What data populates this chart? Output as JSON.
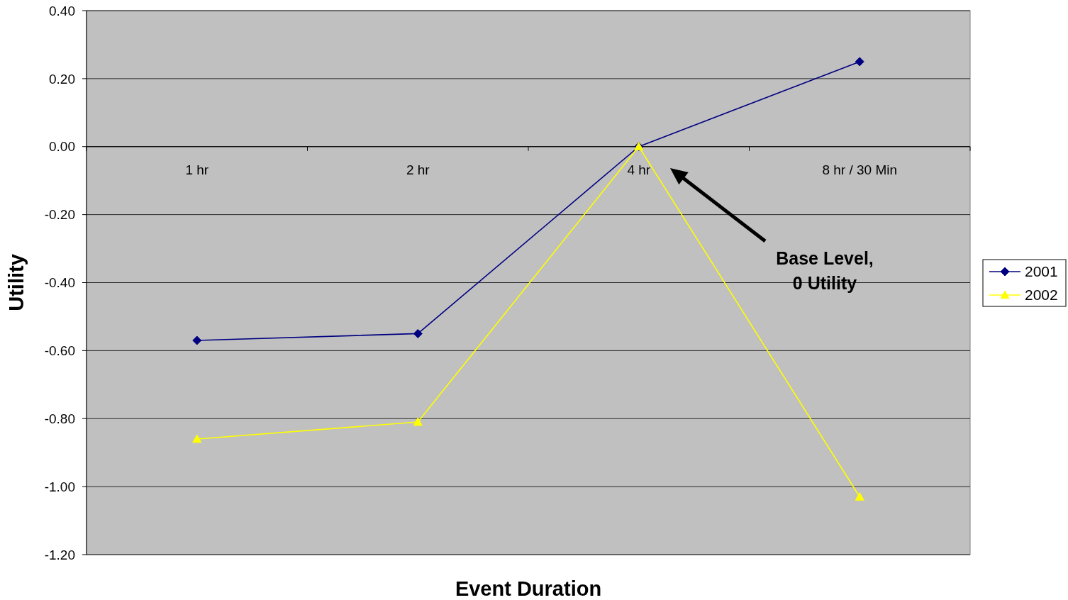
{
  "chart_data": {
    "type": "line",
    "xlabel": "Event Duration",
    "ylabel": "Utility",
    "categories": [
      "1 hr",
      "2 hr",
      "4 hr",
      "8 hr / 30 Min"
    ],
    "series": [
      {
        "name": "2001",
        "color": "#000080",
        "values": [
          -0.57,
          -0.55,
          0,
          0.25
        ],
        "marker": "diamond"
      },
      {
        "name": "2002",
        "color": "#ffff00",
        "values": [
          -0.86,
          -0.81,
          0,
          -1.03
        ],
        "marker": "triangle"
      }
    ],
    "ylim": [
      -1.2,
      0.4
    ],
    "yticks": [
      {
        "value": -1.2,
        "label": "-1.20"
      },
      {
        "value": -1.0,
        "label": "-1.00"
      },
      {
        "value": -0.8,
        "label": "-0.80"
      },
      {
        "value": -0.6,
        "label": "-0.60"
      },
      {
        "value": -0.4,
        "label": "-0.40"
      },
      {
        "value": -0.2,
        "label": "-0.20"
      },
      {
        "value": 0,
        "label": "0.00"
      },
      {
        "value": 0.2,
        "label": "0.20"
      },
      {
        "value": 0.4,
        "label": "0.40"
      }
    ],
    "grid": "y",
    "legend": "right",
    "line_style": "solid",
    "annotations": [
      "Base Level,\n0 Utility"
    ]
  }
}
